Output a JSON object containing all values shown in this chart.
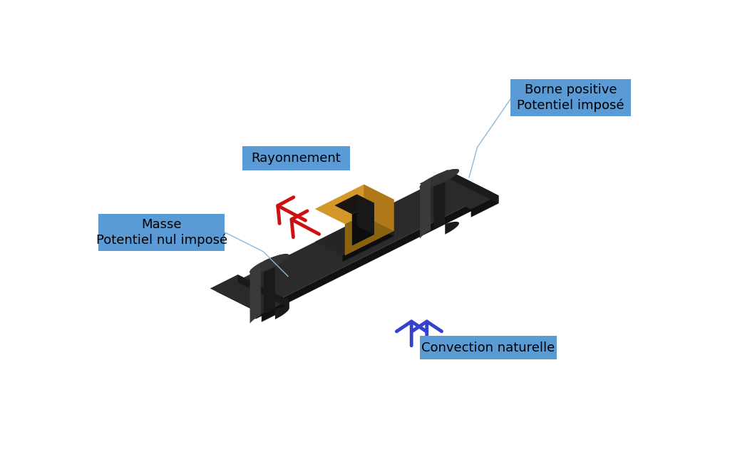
{
  "bg_color": "#ffffff",
  "fig_width": 10.24,
  "fig_height": 6.62,
  "dpi": 100,
  "labels": {
    "borne_positive": "Borne positive\nPotentiel imposé",
    "rayonnement": "Rayonnement",
    "masse": "Masse\nPotentiel nul imposé",
    "convection": "Convection naturelle"
  },
  "label_box_color": "#5b9bd5",
  "label_text_color": "#000000",
  "label_fontsize": 13,
  "fuse_3d": {
    "base_top": "#2a2a2a",
    "base_front": "#111111",
    "base_side": "#1a1a1a",
    "platform_top": "#252525",
    "platform_front": "#0d0d0d",
    "platform_side": "#1e1e1e",
    "fuse_top": "#d4982a",
    "fuse_front": "#8b6210",
    "fuse_side": "#b07818",
    "hole_top": "#1a1510",
    "hole_front": "#0d0d0d",
    "hole_side": "#181818",
    "cyl_body": "#1a1a1a",
    "cyl_top": "#333333",
    "cyl_dark": "#0d0d0d"
  },
  "arrow_red_color": "#cc1111",
  "arrow_blue_color": "#3344cc",
  "line_color": "#88bbdd"
}
